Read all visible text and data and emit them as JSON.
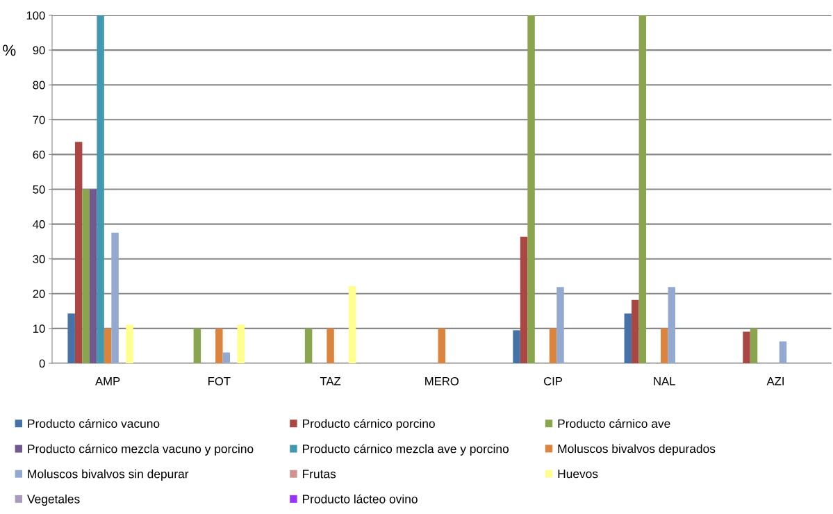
{
  "chart_data": {
    "type": "bar",
    "ylabel": "%",
    "categories": [
      "AMP",
      "FOT",
      "TAZ",
      "MERO",
      "CIP",
      "NAL",
      "AZI"
    ],
    "ylim": [
      0,
      100
    ],
    "yticks": [
      0,
      10,
      20,
      30,
      40,
      50,
      60,
      70,
      80,
      90,
      100
    ],
    "grid": "y",
    "legend": "bottom",
    "series": [
      {
        "name": "Producto cárnico vacuno",
        "color": "#4572a7",
        "values": [
          14.3,
          0,
          0,
          0,
          9.5,
          14.3,
          0
        ]
      },
      {
        "name": "Producto cárnico porcino",
        "color": "#aa4643",
        "values": [
          63.6,
          0,
          0,
          0,
          36.4,
          18.2,
          9.1
        ]
      },
      {
        "name": "Producto cárnico ave",
        "color": "#89a54e",
        "values": [
          50,
          10,
          10,
          0,
          100,
          100,
          10
        ]
      },
      {
        "name": "Producto cárnico mezcla vacuno y porcino",
        "color": "#71588f",
        "values": [
          50,
          0,
          0,
          0,
          0,
          0,
          0
        ]
      },
      {
        "name": "Producto cárnico mezcla ave y porcino",
        "color": "#4198af",
        "values": [
          100,
          0,
          0,
          0,
          0,
          0,
          0
        ]
      },
      {
        "name": "Moluscos bivalvos depurados",
        "color": "#db843d",
        "values": [
          10,
          10,
          10,
          10,
          10,
          10,
          0
        ]
      },
      {
        "name": "Moluscos bivalvos sin depurar",
        "color": "#93a9cf",
        "values": [
          37.5,
          3.1,
          0,
          0,
          21.9,
          21.9,
          6.3
        ]
      },
      {
        "name": "Frutas",
        "color": "#d19392",
        "values": [
          0,
          0,
          0,
          0,
          0,
          0,
          0
        ]
      },
      {
        "name": "Huevos",
        "color": "#ffff8f",
        "values": [
          11.1,
          11.1,
          22.2,
          0,
          0,
          0,
          0
        ]
      },
      {
        "name": "Vegetales",
        "color": "#a99bbd",
        "values": [
          0,
          0,
          0,
          0,
          0,
          0,
          0
        ]
      },
      {
        "name": "Producto lácteo ovino",
        "color": "#9933ff",
        "values": [
          0,
          0,
          0,
          0,
          0,
          0,
          0
        ]
      }
    ]
  }
}
